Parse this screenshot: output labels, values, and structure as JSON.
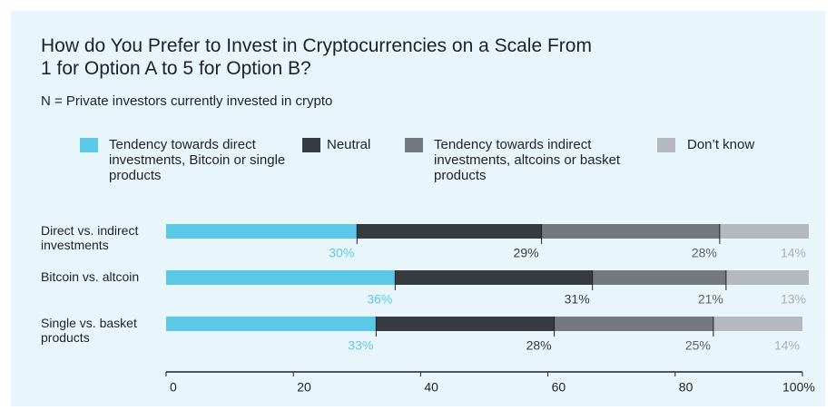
{
  "chart_data": {
    "type": "stacked_barh",
    "title": "How do You Prefer to Invest in Cryptocurrencies on a Scale From 1 for Option A to 5 for Option B?",
    "subtitle": "N = Private investors currently invested in crypto",
    "categories": [
      "Direct vs. indirect investments",
      "Bitcoin vs. altcoin",
      "Single vs. basket products"
    ],
    "series": [
      {
        "name": "Tendency towards direct investments, Bitcoin or single products",
        "color": "#5bc8e8",
        "label_color": "#5bc8e8",
        "values": [
          30,
          36,
          33
        ],
        "value_labels": [
          "30%",
          "36%",
          "33%"
        ]
      },
      {
        "name": "Neutral",
        "color": "#363b40",
        "label_color": "#363b40",
        "values": [
          29,
          31,
          28
        ],
        "value_labels": [
          "29%",
          "31%",
          "28%"
        ]
      },
      {
        "name": "Tendency towards indirect investments, altcoins or basket products",
        "color": "#74797d",
        "label_color": "#5d6266",
        "values": [
          28,
          21,
          25
        ],
        "value_labels": [
          "28%",
          "21%",
          "25%"
        ]
      },
      {
        "name": "Don’t know",
        "color": "#b3b9bd",
        "label_color": "#a9b0b4",
        "values": [
          14,
          13,
          14
        ],
        "value_labels": [
          "14%",
          "13%",
          "14%"
        ]
      }
    ],
    "xlim": [
      0,
      100
    ],
    "xticks": [
      0,
      20,
      40,
      60,
      80,
      {
        "value": 100,
        "label": "100%"
      }
    ]
  }
}
